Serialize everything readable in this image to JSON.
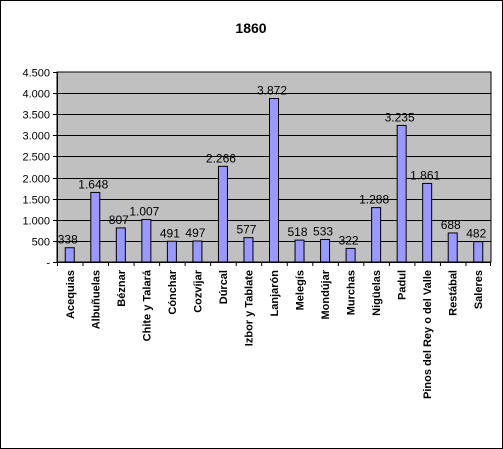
{
  "chart_data": {
    "type": "bar",
    "title": "1860",
    "xlabel": "",
    "ylabel": "",
    "categories": [
      "Acequias",
      "Albuñuelas",
      "Béznar",
      "Chite y Talará",
      "Cónchar",
      "Cozvíjar",
      "Dúrcal",
      "Izbor y Tablate",
      "Lanjarón",
      "Melegís",
      "Mondújar",
      "Murchas",
      "Nigüelas",
      "Padul",
      "Pinos del Rey o del Valle",
      "Restábal",
      "Saleres"
    ],
    "values": [
      338,
      1648,
      807,
      1007,
      491,
      497,
      2266,
      577,
      3872,
      518,
      533,
      322,
      1288,
      3235,
      1861,
      688,
      482
    ],
    "value_labels": [
      "338",
      "1.648",
      "807",
      "1.007",
      "491",
      "497",
      "2.266",
      "577",
      "3.872",
      "518",
      "533",
      "322",
      "1.288",
      "3.235",
      "1.861",
      "688",
      "482"
    ],
    "ylim": [
      0,
      4500
    ],
    "yticks": [
      0,
      500,
      1000,
      1500,
      2000,
      2500,
      3000,
      3500,
      4000,
      4500
    ],
    "ytick_labels": [
      "-",
      "500",
      "1.000",
      "1.500",
      "2.000",
      "2.500",
      "3.000",
      "3.500",
      "4.000",
      "4.500"
    ],
    "grid": true,
    "legend": "none",
    "colors": {
      "plot_background": "#c0c0c0",
      "bar_fill": "#9999ff",
      "bar_stroke": "#000000",
      "gridline": "#000000"
    }
  }
}
